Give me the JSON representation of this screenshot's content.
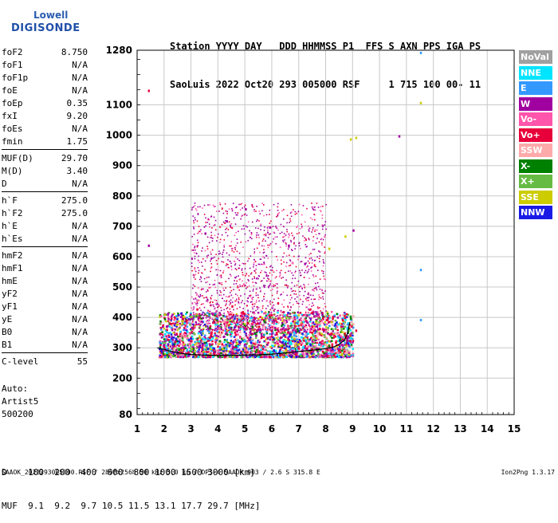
{
  "logo": {
    "line1": "Lowell",
    "line2": "DIGISONDE"
  },
  "header": {
    "line1": "Station YYYY DAY   DDD HHMMSS P1  FFS S AXN PPS IGA PS",
    "line2": "SaoLuis 2022 Oct20 293 005000 RSF     1 715 100 00- 11"
  },
  "params": [
    {
      "k": "foF2",
      "v": "8.750"
    },
    {
      "k": "foF1",
      "v": "N/A"
    },
    {
      "k": "foF1p",
      "v": "N/A"
    },
    {
      "k": "foE",
      "v": "N/A"
    },
    {
      "k": "foEp",
      "v": "0.35"
    },
    {
      "k": "fxI",
      "v": "9.20"
    },
    {
      "k": "foEs",
      "v": "N/A"
    },
    {
      "k": "fmin",
      "v": "1.75"
    },
    {
      "k": "MUF(D)",
      "v": "29.70"
    },
    {
      "k": "M(D)",
      "v": "3.40"
    },
    {
      "k": "D",
      "v": "N/A"
    },
    {
      "k": "h`F",
      "v": "275.0"
    },
    {
      "k": "h`F2",
      "v": "275.0"
    },
    {
      "k": "h`E",
      "v": "N/A"
    },
    {
      "k": "h`Es",
      "v": "N/A"
    },
    {
      "k": "hmF2",
      "v": "N/A"
    },
    {
      "k": "hmF1",
      "v": "N/A"
    },
    {
      "k": "hmE",
      "v": "N/A"
    },
    {
      "k": "yF2",
      "v": "N/A"
    },
    {
      "k": "yF1",
      "v": "N/A"
    },
    {
      "k": "yE",
      "v": "N/A"
    },
    {
      "k": "B0",
      "v": "N/A"
    },
    {
      "k": "B1",
      "v": "N/A"
    },
    {
      "k": "C-level",
      "v": "55"
    }
  ],
  "auto": {
    "line1": "Auto:",
    "line2": "Artist5",
    "line3": "500200"
  },
  "legend": [
    {
      "label": "NoVal",
      "color": "#a0a0a0"
    },
    {
      "label": "NNE",
      "color": "#00e5ff"
    },
    {
      "label": "E",
      "color": "#3399ff"
    },
    {
      "label": "W",
      "color": "#a000a0"
    },
    {
      "label": "Vo-",
      "color": "#ff55aa"
    },
    {
      "label": "Vo+",
      "color": "#e8003a"
    },
    {
      "label": "SSW",
      "color": "#ffaaaa"
    },
    {
      "label": "X-",
      "color": "#008000"
    },
    {
      "label": "X+",
      "color": "#66bb44"
    },
    {
      "label": "SSE",
      "color": "#cccc00"
    },
    {
      "label": "NNW",
      "color": "#1a1ae6"
    }
  ],
  "footer": {
    "line1": "D    100  200  400  600  800 1000 1500 3000 [km]",
    "line2": "MUF  9.1  9.2  9.7 10.5 11.5 13.1 17.7 29.7 [MHz]"
  },
  "bottom_line": "SAAOK_2022293005000.RSF / 280fx256h 50 kHz 5.0 km / DPS-4 SAAOK 903 / 2.6 S 315.8 E",
  "version": "Ion2Png 1.3.17",
  "chart_data": {
    "type": "scatter",
    "x_ticks": [
      1,
      2,
      3,
      4,
      5,
      6,
      7,
      8,
      9,
      10,
      11,
      12,
      13,
      14,
      15
    ],
    "y_ticks": [
      80,
      200,
      300,
      400,
      500,
      600,
      700,
      800,
      900,
      1000,
      1100,
      1280
    ],
    "xlim": [
      1,
      15
    ],
    "ylim": [
      80,
      1280
    ],
    "grid": true,
    "legend_position": "right",
    "trace": {
      "x": [
        1.75,
        2.2,
        2.6,
        3.0,
        3.5,
        4.0,
        4.5,
        5.0,
        5.5,
        6.0,
        6.5,
        7.0,
        7.5,
        8.0,
        8.3,
        8.5,
        8.7,
        8.8,
        8.9
      ],
      "y": [
        300,
        290,
        282,
        278,
        276,
        275,
        275,
        276,
        277,
        279,
        283,
        288,
        292,
        297,
        303,
        311,
        325,
        345,
        385
      ]
    },
    "scatter": [
      {
        "dir": "Vo+",
        "points": [
          [
            1.4,
            1150
          ],
          [
            2.1,
            330
          ],
          [
            3.2,
            430
          ],
          [
            4.5,
            440
          ],
          [
            6.2,
            450
          ],
          [
            7.4,
            430
          ],
          [
            8.6,
            395
          ],
          [
            9.1,
            360
          ]
        ]
      },
      {
        "dir": "W",
        "points": [
          [
            1.4,
            640
          ],
          [
            3.5,
            680
          ],
          [
            4.3,
            720
          ],
          [
            5.0,
            760
          ],
          [
            5.9,
            700
          ],
          [
            6.6,
            640
          ],
          [
            7.2,
            580
          ],
          [
            10.7,
            1000
          ],
          [
            9.0,
            690
          ]
        ]
      },
      {
        "dir": "X-",
        "points": [
          [
            8.1,
            310
          ],
          [
            8.5,
            330
          ],
          [
            8.8,
            355
          ],
          [
            8.9,
            400
          ]
        ]
      },
      {
        "dir": "SSE",
        "points": [
          [
            8.7,
            670
          ],
          [
            8.9,
            990
          ],
          [
            9.1,
            995
          ],
          [
            11.5,
            1110
          ],
          [
            8.1,
            630
          ]
        ]
      },
      {
        "dir": "E",
        "points": [
          [
            11.5,
            1275
          ],
          [
            11.5,
            560
          ],
          [
            11.5,
            395
          ]
        ]
      },
      {
        "dir": "NNW",
        "points": [
          [
            1.8,
            300
          ],
          [
            2.3,
            315
          ],
          [
            2.9,
            330
          ],
          [
            3.6,
            300
          ],
          [
            4.4,
            310
          ],
          [
            5.2,
            320
          ]
        ]
      }
    ]
  }
}
